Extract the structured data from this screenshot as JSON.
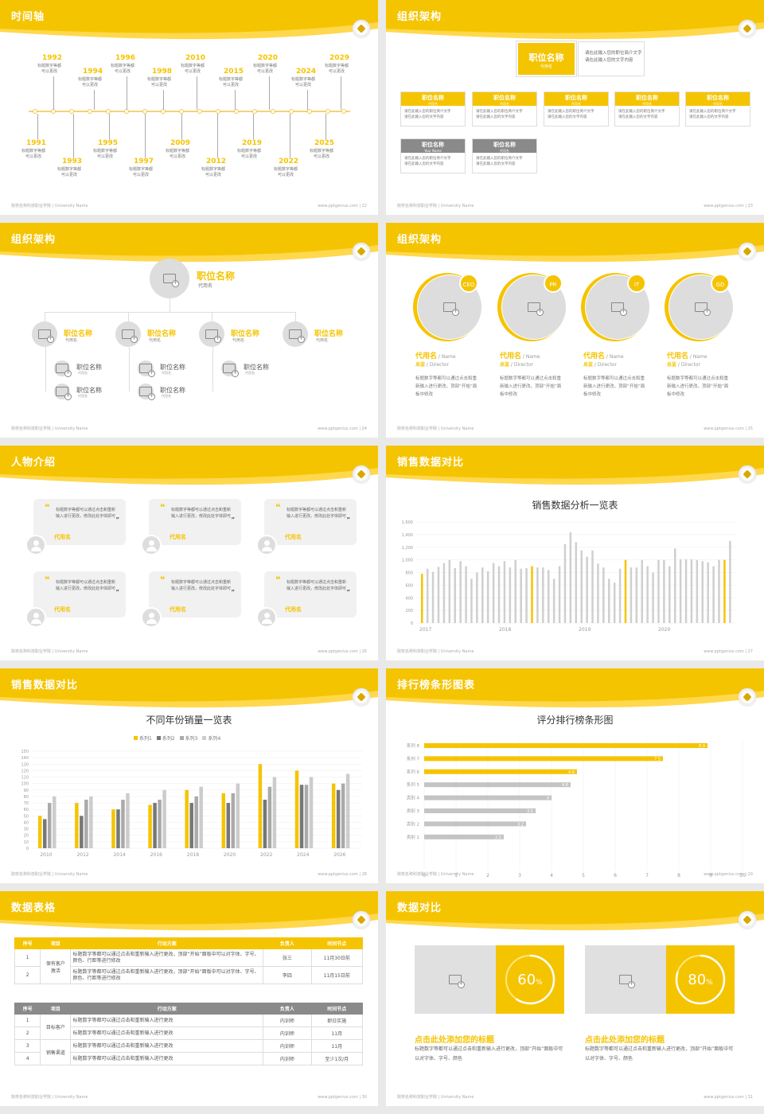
{
  "footer_left": "院校名称科技职业学院 | University Name",
  "footer_right": "www.pptgenius.com",
  "colors": {
    "accent": "#f5c400",
    "grey": "#c8c8c8",
    "dark_grey": "#888888"
  },
  "slides": [
    {
      "title": "时间轴",
      "page": "22",
      "top_years": [
        {
          "y": "1992",
          "t": "标题数字等都\n可以更改"
        },
        {
          "y": "1994",
          "t": "标题数字等都\n可以更改"
        },
        {
          "y": "1996",
          "t": "标题数字等都\n可以更改"
        },
        {
          "y": "1998",
          "t": "标题数字等都\n可以更改"
        },
        {
          "y": "2010",
          "t": "标题数字等都\n可以更改"
        },
        {
          "y": "2015",
          "t": "标题数字等都\n可以更改"
        },
        {
          "y": "2020",
          "t": "标题数字等都\n可以更改"
        },
        {
          "y": "2024",
          "t": "标题数字等都\n可以更改"
        },
        {
          "y": "2029",
          "t": "标题数字等都\n可以更改"
        }
      ],
      "bottom_years": [
        {
          "y": "1991",
          "t": "标题数字等都\n可以更改"
        },
        {
          "y": "1993",
          "t": "标题数字等都\n可以更改"
        },
        {
          "y": "1995",
          "t": "标题数字等都\n可以更改"
        },
        {
          "y": "1997",
          "t": "标题数字等都\n可以更改"
        },
        {
          "y": "2009",
          "t": "标题数字等都\n可以更改"
        },
        {
          "y": "2012",
          "t": "标题数字等都\n可以更改"
        },
        {
          "y": "2019",
          "t": "标题数字等都\n可以更改"
        },
        {
          "y": "2022",
          "t": "标题数字等都\n可以更改"
        },
        {
          "y": "2025",
          "t": "标题数字等都\n可以更改"
        }
      ]
    },
    {
      "title": "组织架构",
      "page": "23",
      "top_name": "职位名称",
      "top_sub": "代用名",
      "top_desc": "请在此输入您的职位简介文字\n请在此输入您的文字内容",
      "box_name": "职位名称",
      "box_sub": "代用名",
      "box_sub2": "Your Name",
      "box_desc": "请在此输入您的职位简介文字\n请在此输入您的文字内容"
    },
    {
      "title": "组织架构",
      "page": "24",
      "top_name": "职位名称",
      "top_sub": "代用名",
      "mid_name": "职位名称",
      "mid_sub": "代用名",
      "low_name": "职位名称",
      "low_sub": "代用名"
    },
    {
      "title": "组织架构",
      "page": "25",
      "cards": [
        {
          "tag": "CEO"
        },
        {
          "tag": "PR"
        },
        {
          "tag": "IT"
        },
        {
          "tag": "GD"
        }
      ],
      "name": "代用名",
      "name_en": "/ Name",
      "role": "总监",
      "role_en": "/ Director",
      "desc": "标题数字等都可以通过点击和重新输入进行更改，顶部“开始”面板中修改"
    },
    {
      "title": "人物介绍",
      "page": "26",
      "quote": "标题数字等都可以通过点击和重新输入进行更改，修改此处字体即可",
      "name": "代用名"
    },
    {
      "title": "销售数据对比",
      "page": "27",
      "chart_title": "销售数据分析一览表"
    },
    {
      "title": "销售数据对比",
      "page": "28",
      "chart_title": "不同年份销量一览表"
    },
    {
      "title": "排行榜条形图表",
      "page": "29",
      "chart_title": "评分排行榜条形图"
    },
    {
      "title": "数据表格",
      "page": "30",
      "t1_head": [
        "序号",
        "项目",
        "行动方案",
        "负责人",
        "时间节点"
      ],
      "t1_group": "保有客户\n激活",
      "t1_rows": [
        [
          "1",
          "标题数字等都可以通过点击和重新输入进行更改，顶部“开始”面板中可以对字体、字号、颜色、行距等进行修改",
          "张三",
          "11月30日前"
        ],
        [
          "2",
          "标题数字等都可以通过点击和重新输入进行更改，顶部“开始”面板中可以对字体、字号、颜色、行距等进行修改",
          "李四",
          "11月15日前"
        ]
      ],
      "t2_head": [
        "序号",
        "项目",
        "行动方案",
        "负责人",
        "时间节点"
      ],
      "t2_groups": [
        "目标客户",
        "销售渠道"
      ],
      "t2_rows": [
        [
          "1",
          "标题数字等都可以通过点击和重新输入进行更改",
          "内训师",
          "即日实施"
        ],
        [
          "2",
          "标题数字等都可以通过点击和重新输入进行更改",
          "内训师",
          "11月"
        ],
        [
          "3",
          "标题数字等都可以通过点击和重新输入进行更改",
          "内训师",
          "11月"
        ],
        [
          "4",
          "标题数字等都可以通过点击和重新输入进行更改",
          "内训师",
          "至少1次/月"
        ]
      ]
    },
    {
      "title": "数据对比",
      "page": "31",
      "items": [
        {
          "pct": "60",
          "unit": "%",
          "value": 0.6
        },
        {
          "pct": "80",
          "unit": "%",
          "value": 0.8
        }
      ],
      "cap_title": "点击此处添加您的标题",
      "cap_text": "标题数字等都可以通过点击和重新输入进行更改，顶部“开始”面板中可以对字体、字号、颜色"
    }
  ],
  "chart_data": [
    {
      "type": "bar",
      "title": "销售数据分析一览表",
      "x_labels": [
        "2017",
        "2018",
        "2019",
        "2020"
      ],
      "ylim": [
        0,
        1600
      ],
      "yticks": [
        "0",
        "200",
        "400",
        "600",
        "800",
        "1,000",
        "1,200",
        "1,400",
        "1,600"
      ],
      "values": [
        780,
        860,
        810,
        890,
        950,
        1000,
        870,
        980,
        900,
        700,
        800,
        880,
        820,
        950,
        900,
        980,
        880,
        1000,
        860,
        870,
        900,
        880,
        880,
        840,
        700,
        900,
        1250,
        1440,
        1280,
        1150,
        1050,
        1150,
        940,
        880,
        700,
        640,
        860,
        1000,
        880,
        880,
        1000,
        900,
        800,
        1000,
        1000,
        900,
        1180,
        1010,
        1010,
        1010,
        1000,
        980,
        960,
        900,
        1000,
        1000,
        1300
      ],
      "highlight": [
        0,
        20,
        37,
        55
      ]
    },
    {
      "type": "bar",
      "title": "不同年份销量一览表",
      "categories": [
        "2010",
        "2012",
        "2014",
        "2016",
        "2018",
        "2020",
        "2022",
        "2024",
        "2026"
      ],
      "ylim": [
        0,
        150
      ],
      "yticks": [
        "0",
        "10",
        "20",
        "30",
        "40",
        "50",
        "60",
        "70",
        "80",
        "90",
        "100",
        "110",
        "120",
        "130",
        "140",
        "150"
      ],
      "series": [
        {
          "name": "系列1",
          "values": [
            50,
            70,
            60,
            67,
            90,
            85,
            130,
            120,
            100
          ]
        },
        {
          "name": "系列2",
          "values": [
            45,
            50,
            60,
            70,
            70,
            70,
            75,
            98,
            90
          ]
        },
        {
          "name": "系列3",
          "values": [
            70,
            75,
            75,
            75,
            80,
            85,
            95,
            98,
            100
          ]
        },
        {
          "name": "系列4",
          "values": [
            80,
            80,
            85,
            90,
            95,
            100,
            110,
            110,
            115
          ]
        }
      ]
    },
    {
      "type": "bar",
      "orientation": "horizontal",
      "title": "评分排行榜条形图",
      "categories": [
        "类别 1",
        "类别 2",
        "类别 3",
        "类别 4",
        "系列 5",
        "系列 6",
        "系列 7",
        "系列 8"
      ],
      "values": [
        2.5,
        3.2,
        3.5,
        4,
        4.6,
        4.8,
        7.5,
        8.9
      ],
      "xlim": [
        0,
        10
      ],
      "xticks": [
        "0",
        "1",
        "2",
        "3",
        "4",
        "5",
        "6",
        "7",
        "8",
        "9",
        "10"
      ]
    }
  ]
}
